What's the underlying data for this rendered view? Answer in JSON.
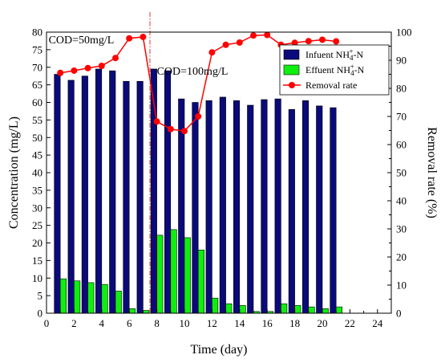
{
  "chart_data": {
    "type": "bar",
    "x": [
      1,
      2,
      3,
      4,
      5,
      6,
      7,
      8,
      9,
      10,
      11,
      12,
      13,
      14,
      15,
      16,
      17,
      18,
      19,
      20,
      21
    ],
    "series": [
      {
        "name": "Infuent NH4+-N",
        "type": "bar",
        "axis": "left",
        "color": "#0a0a7a",
        "values": [
          68,
          66.3,
          67.5,
          69.5,
          69,
          66,
          66,
          69.5,
          69,
          61,
          60,
          60.5,
          61.5,
          60.5,
          59.2,
          60.8,
          61,
          58,
          60.5,
          59,
          58.5
        ]
      },
      {
        "name": "Effuent NH4+-N",
        "type": "bar",
        "axis": "left",
        "color": "#10ee10",
        "values": [
          9.8,
          9.2,
          8.7,
          8.2,
          6.3,
          1.3,
          0.8,
          22.2,
          23.8,
          21.5,
          18,
          4.3,
          2.7,
          2.2,
          0.5,
          0.5,
          2.7,
          2.2,
          1.8,
          1.3,
          1.8
        ]
      },
      {
        "name": "Removal rate",
        "type": "line",
        "axis": "right",
        "color": "#ff0000",
        "values": [
          85.5,
          86.3,
          87.2,
          88,
          90.8,
          97.8,
          98.3,
          68.2,
          65.5,
          64.8,
          70,
          92.8,
          95.5,
          96.3,
          98.8,
          99,
          95.5,
          96.2,
          96.8,
          97.3,
          96.7
        ]
      }
    ],
    "xlabel": "Time (day)",
    "ylabel": "Concentration (mg/L)",
    "y2label": "Removal rate (%)",
    "xlim": [
      0,
      25
    ],
    "xticks": [
      "0",
      "2",
      "4",
      "6",
      "8",
      "10",
      "12",
      "14",
      "16",
      "18",
      "20",
      "22",
      "24"
    ],
    "ylim": [
      0,
      80
    ],
    "yticks": [
      "0",
      "5",
      "10",
      "15",
      "20",
      "25",
      "30",
      "35",
      "40",
      "45",
      "50",
      "55",
      "60",
      "65",
      "70",
      "75",
      "80"
    ],
    "y2lim": [
      0,
      100
    ],
    "y2ticks": [
      "0",
      "10",
      "20",
      "30",
      "40",
      "50",
      "60",
      "70",
      "80",
      "90",
      "100"
    ],
    "divider_x": 7.5,
    "annotations": [
      {
        "text": "COD=50mg/L",
        "x": 0.15,
        "y": 78
      },
      {
        "text": "COD=100mg/L",
        "x": 8.0,
        "y": 69
      }
    ],
    "legend_position": "top-right",
    "grid": false
  },
  "legend": [
    {
      "parts": [
        [
          "Infuent NH",
          "n"
        ],
        [
          "4",
          "sub"
        ],
        [
          "+",
          "sup"
        ],
        [
          "-N",
          "n"
        ]
      ]
    },
    {
      "parts": [
        [
          "Effuent NH",
          "n"
        ],
        [
          "4",
          "sub"
        ],
        [
          "+",
          "sup"
        ],
        [
          "-N",
          "n"
        ]
      ]
    },
    {
      "parts": [
        [
          "Removal rate",
          "n"
        ]
      ]
    }
  ]
}
